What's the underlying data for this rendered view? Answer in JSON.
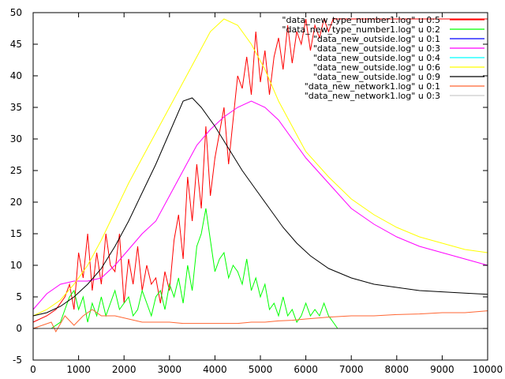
{
  "chart_data": {
    "type": "line",
    "xlim": [
      0,
      10000
    ],
    "ylim": [
      -5,
      50
    ],
    "x_ticks": [
      "0",
      "1000",
      "2000",
      "3000",
      "4000",
      "5000",
      "6000",
      "7000",
      "8000",
      "9000",
      "10000"
    ],
    "y_ticks": [
      "-5",
      "0",
      "5",
      "10",
      "15",
      "20",
      "25",
      "30",
      "35",
      "40",
      "45",
      "50"
    ],
    "grid": false,
    "legend_position": "top-right",
    "series": [
      {
        "name": "\"data_new_type_number1.log\" u 0:5",
        "color": "#ff0000",
        "x": [
          0,
          300,
          500,
          700,
          800,
          900,
          1000,
          1100,
          1200,
          1300,
          1400,
          1500,
          1600,
          1700,
          1800,
          1900,
          2000,
          2100,
          2200,
          2300,
          2400,
          2500,
          2600,
          2700,
          2800,
          2900,
          3000,
          3100,
          3200,
          3300,
          3400,
          3500,
          3600,
          3700,
          3800,
          3900,
          4000,
          4100,
          4200,
          4300,
          4400,
          4500,
          4600,
          4700,
          4800,
          4900,
          5000,
          5100,
          5200,
          5300,
          5400,
          5500,
          5600,
          5700,
          5800,
          5900,
          6000,
          6100,
          6200,
          6300,
          6400,
          6500,
          6600,
          6700,
          10000
        ],
        "y": [
          1,
          2,
          3,
          5,
          7,
          3,
          12,
          8,
          15,
          6,
          12,
          7,
          15,
          10,
          9,
          15,
          4,
          11,
          7,
          13,
          6,
          10,
          7,
          8,
          4,
          9,
          6,
          14,
          18,
          11,
          24,
          17,
          26,
          19,
          32,
          21,
          27,
          31,
          35,
          26,
          33,
          40,
          38,
          43,
          37,
          47,
          39,
          44,
          37,
          43,
          46,
          41,
          48,
          42,
          47,
          45,
          49,
          44,
          48,
          46,
          49,
          47,
          49,
          49,
          49
        ]
      },
      {
        "name": "\"data_new_type_number1.log\" u 0:2",
        "color": "#00ff00",
        "x": [
          0,
          400,
          600,
          700,
          800,
          900,
          1000,
          1100,
          1200,
          1300,
          1400,
          1500,
          1600,
          1700,
          1800,
          1900,
          2000,
          2100,
          2200,
          2300,
          2400,
          2500,
          2600,
          2700,
          2800,
          2900,
          3000,
          3100,
          3200,
          3300,
          3400,
          3500,
          3600,
          3700,
          3800,
          3900,
          4000,
          4100,
          4200,
          4300,
          4400,
          4500,
          4600,
          4700,
          4800,
          4900,
          5000,
          5100,
          5200,
          5300,
          5400,
          5500,
          5600,
          5700,
          5800,
          5900,
          6000,
          6100,
          6200,
          6300,
          6400,
          6500,
          6600,
          6700,
          10000
        ],
        "y": [
          0,
          0,
          1,
          3,
          5,
          6,
          3,
          5,
          1,
          4,
          2,
          5,
          2,
          4,
          6,
          3,
          4,
          5,
          2,
          3,
          6,
          4,
          2,
          5,
          6,
          3,
          7,
          5,
          8,
          4,
          10,
          6,
          13,
          15,
          19,
          14,
          9,
          11,
          12,
          8,
          10,
          9,
          7,
          11,
          6,
          8,
          5,
          7,
          3,
          4,
          2,
          5,
          2,
          3,
          1,
          2,
          4,
          2,
          3,
          2,
          4,
          2,
          1,
          0,
          0
        ]
      },
      {
        "name": "\"data_new_outside.log\" u 0:1",
        "color": "#0000ff",
        "x": [
          0,
          10000
        ],
        "y": [
          0,
          0
        ]
      },
      {
        "name": "\"data_new_outside.log\" u 0:3",
        "color": "#ff00ff",
        "x": [
          0,
          300,
          600,
          900,
          1200,
          1500,
          1800,
          2100,
          2400,
          2700,
          3000,
          3300,
          3600,
          3900,
          4200,
          4500,
          4800,
          5100,
          5400,
          5700,
          6000,
          6500,
          7000,
          7500,
          8000,
          8500,
          9000,
          9500,
          10000
        ],
        "y": [
          3,
          5.5,
          7,
          7.5,
          7.5,
          8,
          10,
          12.5,
          15,
          17,
          21,
          25,
          29,
          31.5,
          33.5,
          35,
          36,
          35,
          33,
          30,
          27,
          23,
          19,
          16.5,
          14.5,
          13,
          12,
          11,
          10
        ]
      },
      {
        "name": "\"data_new_outside.log\" u 0:4",
        "color": "#00ffff",
        "x": [
          0,
          10000
        ],
        "y": [
          0,
          0
        ]
      },
      {
        "name": "\"data_new_outside.log\" u 0:6",
        "color": "#ffff00",
        "x": [
          0,
          300,
          600,
          900,
          1200,
          1500,
          1800,
          2100,
          2400,
          2700,
          3000,
          3300,
          3600,
          3900,
          4200,
          4500,
          4800,
          5100,
          5400,
          5700,
          6000,
          6500,
          7000,
          7500,
          8000,
          8500,
          9000,
          9500,
          10000
        ],
        "y": [
          2,
          3,
          4.5,
          7,
          10,
          14,
          18.5,
          23,
          27,
          31,
          35,
          39,
          43,
          47,
          49,
          48,
          45,
          41,
          36,
          32,
          28,
          24,
          20.5,
          18,
          16,
          14.5,
          13.5,
          12.5,
          12
        ]
      },
      {
        "name": "\"data_new_outside.log\" u 0:9",
        "color": "#000000",
        "x": [
          0,
          300,
          600,
          900,
          1200,
          1500,
          1800,
          2100,
          2400,
          2700,
          3000,
          3300,
          3500,
          3700,
          4000,
          4300,
          4600,
          4900,
          5200,
          5500,
          5800,
          6100,
          6500,
          7000,
          7500,
          8000,
          8500,
          9000,
          9500,
          10000
        ],
        "y": [
          2,
          2.5,
          3.5,
          5,
          7,
          9.5,
          13,
          17,
          21.5,
          26,
          31,
          36,
          36.5,
          35,
          32,
          28.5,
          25,
          22,
          19,
          16,
          13.5,
          11.5,
          9.5,
          8,
          7,
          6.5,
          6,
          5.8,
          5.6,
          5.4
        ]
      },
      {
        "name": "\"data_new_network1.log\" u 0:1",
        "color": "#ff6633",
        "x": [
          0,
          400,
          500,
          700,
          900,
          1100,
          1300,
          1500,
          1800,
          2100,
          2400,
          2700,
          3000,
          3300,
          3600,
          3900,
          4200,
          4500,
          4800,
          5100,
          5400,
          5700,
          6000,
          6500,
          7000,
          7500,
          8000,
          8500,
          9000,
          9500,
          10000
        ],
        "y": [
          0,
          1,
          -0.5,
          2,
          0.5,
          2,
          3,
          2,
          2,
          1.5,
          1,
          1,
          1,
          0.8,
          0.8,
          0.8,
          0.8,
          0.8,
          1,
          1,
          1.2,
          1.3,
          1.5,
          1.8,
          2,
          2,
          2.2,
          2.3,
          2.5,
          2.5,
          2.8
        ]
      },
      {
        "name": "\"data_new_network1.log\" u 0:3",
        "color": "#cccccc",
        "x": [
          0,
          10000
        ],
        "y": [
          0,
          0
        ]
      }
    ]
  }
}
